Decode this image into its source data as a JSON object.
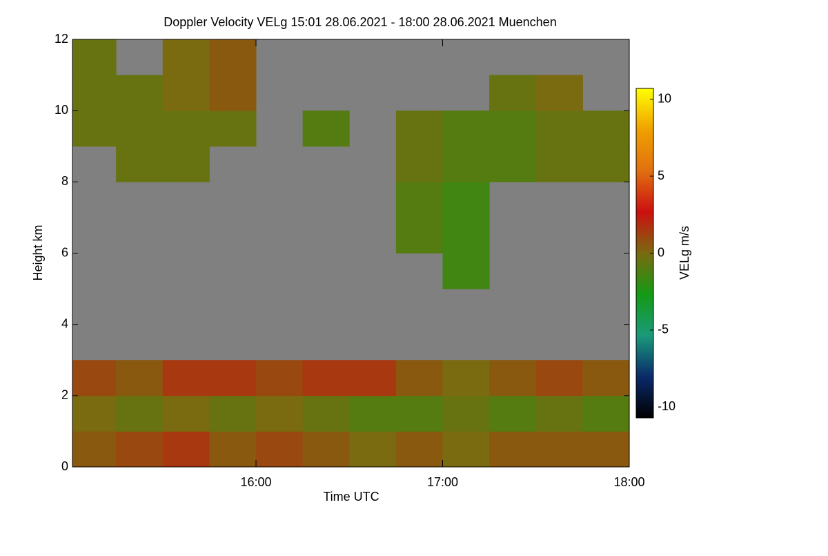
{
  "chart_data": {
    "type": "heatmap",
    "title": "Doppler Velocity VELg   15:01 28.06.2021 - 18:00 28.06.2021 Muenchen",
    "x_label": "Time UTC",
    "y_label": "Height km",
    "colorbar_label": "VELg m/s",
    "x_bins": [
      15.0167,
      15.25,
      15.5,
      15.75,
      16.0,
      16.25,
      16.5,
      16.75,
      17.0,
      17.25,
      17.5,
      17.75,
      18.0
    ],
    "y_bins": [
      0,
      1,
      2,
      3,
      4,
      5,
      6,
      7,
      8,
      9,
      10,
      11,
      12
    ],
    "z": [
      [
        0.5,
        1,
        1.5,
        0.5,
        1,
        0.5,
        0,
        0.5,
        0,
        0.5,
        0.5,
        0.5
      ],
      [
        0,
        -0.5,
        0,
        -0.5,
        0,
        -0.5,
        -1,
        -1,
        -0.5,
        -1,
        -0.5,
        -1
      ],
      [
        1,
        0.5,
        1.5,
        1.5,
        1,
        1.5,
        1.5,
        0.5,
        0,
        0.5,
        1,
        0.5
      ],
      [
        null,
        null,
        null,
        null,
        null,
        null,
        null,
        null,
        null,
        null,
        null,
        null
      ],
      [
        null,
        null,
        null,
        null,
        null,
        null,
        null,
        null,
        null,
        null,
        null,
        null
      ],
      [
        null,
        null,
        null,
        null,
        null,
        null,
        null,
        null,
        -1.5,
        null,
        null,
        null
      ],
      [
        null,
        null,
        null,
        null,
        null,
        null,
        null,
        -1,
        -1.5,
        null,
        null,
        null
      ],
      [
        null,
        null,
        null,
        null,
        null,
        null,
        null,
        -1,
        -1.5,
        null,
        null,
        null
      ],
      [
        null,
        -0.5,
        -0.5,
        null,
        null,
        null,
        null,
        -0.5,
        -1,
        -1,
        -0.5,
        -0.5
      ],
      [
        -0.5,
        -0.5,
        -0.5,
        -0.5,
        null,
        -1,
        null,
        -0.5,
        -1,
        -1,
        -0.5,
        -0.5
      ],
      [
        -0.5,
        -0.5,
        0,
        0.5,
        null,
        null,
        null,
        null,
        null,
        -0.5,
        0,
        null
      ],
      [
        -0.5,
        null,
        0,
        0.5,
        null,
        null,
        null,
        null,
        null,
        null,
        null,
        null
      ]
    ],
    "xlim": [
      15.0167,
      18.0
    ],
    "xticks": [
      {
        "value": 16,
        "label": "16:00"
      },
      {
        "value": 17,
        "label": "17:00"
      },
      {
        "value": 18,
        "label": "18:00"
      }
    ],
    "ylim": [
      0,
      12
    ],
    "yticks": [
      0,
      2,
      4,
      6,
      8,
      10,
      12
    ],
    "zlim": [
      -10.7,
      10.7
    ],
    "zticks": [
      -10,
      -5,
      0,
      5,
      10
    ],
    "colorscale": [
      "#000000",
      "#0a2a6a",
      "#1a9a7a",
      "#149a14",
      "#7a6a10",
      "#cc1010",
      "#e07010",
      "#f0a000",
      "#ffff00"
    ],
    "nodata_color": "#808080"
  }
}
